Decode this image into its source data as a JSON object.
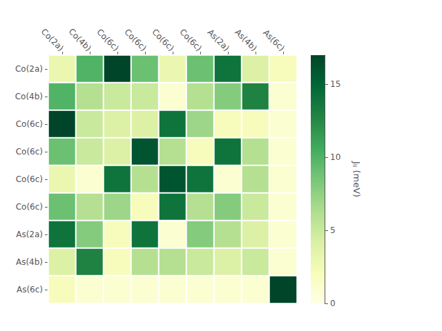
{
  "chart_data": {
    "type": "heatmap",
    "categories": [
      "Co(2a)",
      "Co(4b)",
      "Co(6c)",
      "Co(6c)",
      "Co(6c)",
      "Co(6c)",
      "As(2a)",
      "As(4b)",
      "As(6c)"
    ],
    "rows": [
      "Co(2a)",
      "Co(4b)",
      "Co(6c)",
      "Co(6c)",
      "Co(6c)",
      "Co(6c)",
      "As(2a)",
      "As(4b)",
      "As(6c)"
    ],
    "values": [
      [
        3,
        10,
        17,
        9,
        3,
        9,
        14,
        4,
        2
      ],
      [
        10,
        6,
        5,
        5,
        1,
        6,
        8,
        13,
        1
      ],
      [
        17,
        5,
        4,
        4,
        14,
        7,
        2,
        2,
        1
      ],
      [
        9,
        5,
        4,
        16,
        6,
        2,
        14,
        6,
        1
      ],
      [
        3,
        1,
        14,
        6,
        16,
        14,
        1,
        6,
        1
      ],
      [
        9,
        6,
        7,
        2,
        14,
        6,
        8,
        5,
        1
      ],
      [
        14,
        8,
        2,
        14,
        1,
        8,
        6,
        4,
        1
      ],
      [
        4,
        13,
        2,
        6,
        6,
        5,
        4,
        5,
        1
      ],
      [
        2,
        1,
        1,
        1,
        1,
        1,
        1,
        1,
        17
      ]
    ],
    "colorbar": {
      "label": "Jᵢⱼ (meV)",
      "range": [
        0,
        17
      ],
      "ticks": [
        0,
        5,
        10,
        15
      ],
      "colors": [
        "#ffffe5",
        "#f7fcb9",
        "#d9f0a3",
        "#addd8e",
        "#78c679",
        "#41ab5d",
        "#238443",
        "#006837",
        "#004529"
      ]
    }
  }
}
